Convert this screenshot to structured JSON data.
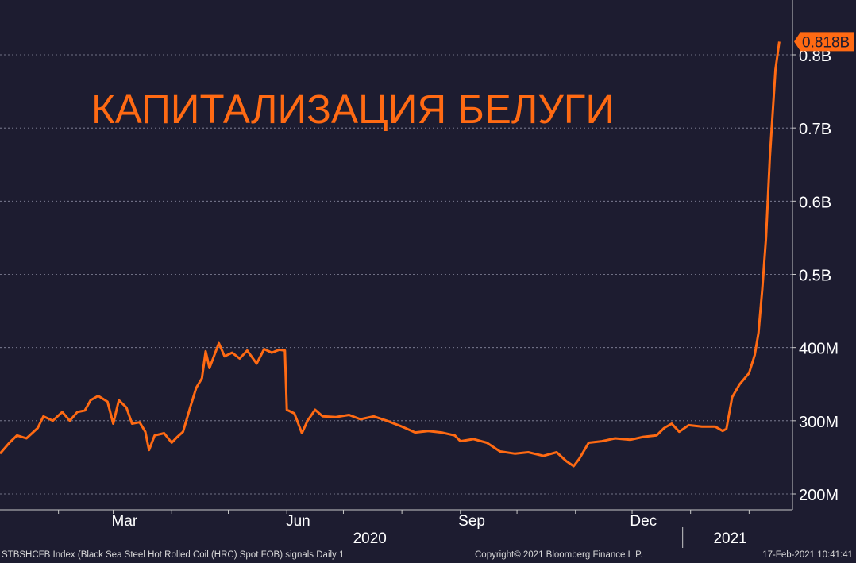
{
  "chart_data": {
    "type": "line",
    "title": "КАПИТАЛИЗАЦИЯ БЕЛУГИ",
    "series": [
      {
        "color": "#ff6a13",
        "points": [
          [
            "2020-01-01",
            255
          ],
          [
            "2020-01-06",
            270
          ],
          [
            "2020-01-10",
            280
          ],
          [
            "2020-01-15",
            276
          ],
          [
            "2020-01-21",
            290
          ],
          [
            "2020-01-24",
            306
          ],
          [
            "2020-01-29",
            300
          ],
          [
            "2020-02-03",
            312
          ],
          [
            "2020-02-07",
            300
          ],
          [
            "2020-02-11",
            312
          ],
          [
            "2020-02-15",
            314
          ],
          [
            "2020-02-18",
            328
          ],
          [
            "2020-02-22",
            334
          ],
          [
            "2020-02-27",
            326
          ],
          [
            "2020-03-01",
            296
          ],
          [
            "2020-03-04",
            328
          ],
          [
            "2020-03-08",
            318
          ],
          [
            "2020-03-11",
            296
          ],
          [
            "2020-03-15",
            298
          ],
          [
            "2020-03-18",
            285
          ],
          [
            "2020-03-20",
            260
          ],
          [
            "2020-03-23",
            280
          ],
          [
            "2020-03-28",
            283
          ],
          [
            "2020-04-01",
            270
          ],
          [
            "2020-04-04",
            278
          ],
          [
            "2020-04-07",
            285
          ],
          [
            "2020-04-11",
            320
          ],
          [
            "2020-04-14",
            345
          ],
          [
            "2020-04-17",
            358
          ],
          [
            "2020-04-19",
            395
          ],
          [
            "2020-04-21",
            372
          ],
          [
            "2020-04-26",
            406
          ],
          [
            "2020-04-29",
            388
          ],
          [
            "2020-05-03",
            393
          ],
          [
            "2020-05-07",
            385
          ],
          [
            "2020-05-11",
            396
          ],
          [
            "2020-05-16",
            378
          ],
          [
            "2020-05-20",
            398
          ],
          [
            "2020-05-24",
            393
          ],
          [
            "2020-05-28",
            397
          ],
          [
            "2020-05-31",
            396
          ],
          [
            "2020-06-01",
            315
          ],
          [
            "2020-06-05",
            310
          ],
          [
            "2020-06-09",
            283
          ],
          [
            "2020-06-12",
            300
          ],
          [
            "2020-06-16",
            315
          ],
          [
            "2020-06-20",
            306
          ],
          [
            "2020-06-27",
            305
          ],
          [
            "2020-07-04",
            308
          ],
          [
            "2020-07-10",
            302
          ],
          [
            "2020-07-17",
            306
          ],
          [
            "2020-07-24",
            300
          ],
          [
            "2020-08-01",
            292
          ],
          [
            "2020-08-08",
            284
          ],
          [
            "2020-08-15",
            286
          ],
          [
            "2020-08-22",
            284
          ],
          [
            "2020-08-29",
            280
          ],
          [
            "2020-09-01",
            272
          ],
          [
            "2020-09-08",
            275
          ],
          [
            "2020-09-15",
            270
          ],
          [
            "2020-09-22",
            258
          ],
          [
            "2020-09-30",
            255
          ],
          [
            "2020-10-07",
            257
          ],
          [
            "2020-10-15",
            252
          ],
          [
            "2020-10-22",
            257
          ],
          [
            "2020-10-27",
            245
          ],
          [
            "2020-10-31",
            238
          ],
          [
            "2020-11-03",
            248
          ],
          [
            "2020-11-08",
            270
          ],
          [
            "2020-11-15",
            272
          ],
          [
            "2020-11-22",
            276
          ],
          [
            "2020-11-30",
            274
          ],
          [
            "2020-12-07",
            278
          ],
          [
            "2020-12-14",
            280
          ],
          [
            "2020-12-18",
            290
          ],
          [
            "2020-12-22",
            296
          ],
          [
            "2020-12-26",
            285
          ],
          [
            "2020-12-31",
            294
          ],
          [
            "2021-01-07",
            292
          ],
          [
            "2021-01-14",
            292
          ],
          [
            "2021-01-18",
            286
          ],
          [
            "2021-01-20",
            289
          ],
          [
            "2021-01-23",
            332
          ],
          [
            "2021-01-27",
            350
          ],
          [
            "2021-02-01",
            365
          ],
          [
            "2021-02-04",
            390
          ],
          [
            "2021-02-06",
            420
          ],
          [
            "2021-02-08",
            480
          ],
          [
            "2021-02-10",
            550
          ],
          [
            "2021-02-12",
            660
          ],
          [
            "2021-02-15",
            780
          ],
          [
            "2021-02-17",
            818
          ]
        ]
      }
    ],
    "y_unit": "M",
    "ylim": [
      180,
      840
    ],
    "xlim": [
      "2020-01-01",
      "2021-02-24"
    ],
    "yticks": [
      {
        "value": 200,
        "label": "200M"
      },
      {
        "value": 300,
        "label": "300M"
      },
      {
        "value": 400,
        "label": "400M"
      },
      {
        "value": 500,
        "label": "0.5B"
      },
      {
        "value": 600,
        "label": "0.6B"
      },
      {
        "value": 700,
        "label": "0.7B"
      },
      {
        "value": 800,
        "label": "0.8B"
      }
    ],
    "xticks": [
      {
        "date": "2020-03-07",
        "label": "Mar"
      },
      {
        "date": "2020-06-07",
        "label": "Jun"
      },
      {
        "date": "2020-09-07",
        "label": "Sep"
      },
      {
        "date": "2020-12-07",
        "label": "Dec"
      }
    ],
    "year_labels": [
      {
        "date": "2020-07-15",
        "label": "2020"
      },
      {
        "date": "2021-01-22",
        "label": "2021"
      }
    ],
    "last_value_label": "0.818B",
    "grid": true
  },
  "footer": {
    "left": "STBSHCFB Index (Black Sea Steel Hot Rolled Coil (HRC) Spot FOB) signals  Daily 1",
    "center": "Copyright© 2021 Bloomberg Finance L.P.",
    "right": "17-Feb-2021 10:41:41"
  },
  "colors": {
    "background": "#1d1c30",
    "line": "#ff6a13",
    "axis_text": "#ffffff",
    "grid": "#8a8aa0",
    "footer_text": "#d8d8d8"
  }
}
